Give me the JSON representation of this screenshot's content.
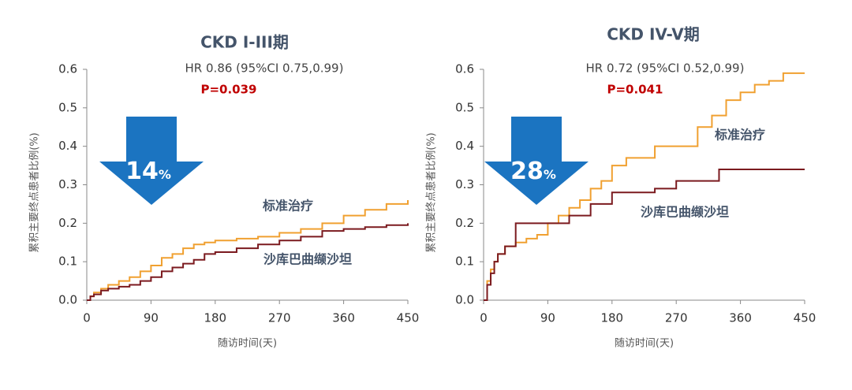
{
  "chart_data": [
    {
      "type": "line",
      "title": "CKD I-III期",
      "hr_text": "HR 0.86 (95%CI  0.75,0.99)",
      "p_text": "P=0.039",
      "arrow_value": 14,
      "arrow_unit": "%",
      "xlabel": "随访时间(天)",
      "ylabel": "累积主要终点患者比例(%)",
      "xlim": [
        0,
        450
      ],
      "xticks": [
        0,
        90,
        180,
        270,
        360,
        450
      ],
      "ylim": [
        0,
        0.6
      ],
      "yticks": [
        {
          "value": 0,
          "label": "0.0"
        },
        0.1,
        0.2,
        0.3,
        0.4,
        0.5,
        0.6
      ],
      "series": [
        {
          "name": "标准治疗",
          "color": "#f0a030",
          "x": [
            0,
            5,
            10,
            20,
            30,
            45,
            60,
            75,
            90,
            105,
            120,
            135,
            150,
            165,
            180,
            210,
            240,
            270,
            300,
            330,
            360,
            390,
            420,
            450
          ],
          "values": [
            0,
            0.01,
            0.02,
            0.03,
            0.04,
            0.05,
            0.06,
            0.075,
            0.09,
            0.11,
            0.12,
            0.135,
            0.145,
            0.15,
            0.155,
            0.16,
            0.165,
            0.175,
            0.185,
            0.2,
            0.22,
            0.235,
            0.25,
            0.26
          ]
        },
        {
          "name": "沙库巴曲缬沙坦",
          "color": "#7b1a1f",
          "x": [
            0,
            5,
            10,
            20,
            30,
            45,
            60,
            75,
            90,
            105,
            120,
            135,
            150,
            165,
            180,
            210,
            240,
            270,
            300,
            330,
            360,
            390,
            420,
            450
          ],
          "values": [
            0,
            0.01,
            0.015,
            0.025,
            0.03,
            0.035,
            0.04,
            0.05,
            0.06,
            0.075,
            0.085,
            0.095,
            0.105,
            0.12,
            0.125,
            0.135,
            0.145,
            0.155,
            0.165,
            0.18,
            0.185,
            0.19,
            0.195,
            0.2
          ]
        }
      ]
    },
    {
      "type": "line",
      "title": "CKD IV-V期",
      "hr_text": "HR 0.72 (95%CI  0.52,0.99)",
      "p_text": "P=0.041",
      "arrow_value": 28,
      "arrow_unit": "%",
      "xlabel": "随访时间(天)",
      "ylabel": "累积主要终点患者比例(%)",
      "xlim": [
        0,
        450
      ],
      "xticks": [
        0,
        90,
        180,
        270,
        360,
        450
      ],
      "ylim": [
        0,
        0.6
      ],
      "yticks": [
        {
          "value": 0,
          "label": "0.0"
        },
        0.1,
        0.2,
        0.3,
        0.4,
        0.5,
        0.6
      ],
      "series": [
        {
          "name": "标准治疗",
          "color": "#f0a030",
          "x": [
            0,
            5,
            10,
            15,
            20,
            30,
            45,
            60,
            75,
            90,
            105,
            120,
            135,
            150,
            165,
            180,
            200,
            240,
            270,
            300,
            320,
            340,
            360,
            380,
            400,
            420,
            450
          ],
          "values": [
            0,
            0.05,
            0.08,
            0.1,
            0.12,
            0.14,
            0.15,
            0.16,
            0.17,
            0.2,
            0.22,
            0.24,
            0.26,
            0.29,
            0.31,
            0.35,
            0.37,
            0.4,
            0.4,
            0.45,
            0.48,
            0.52,
            0.54,
            0.56,
            0.57,
            0.59,
            0.59
          ]
        },
        {
          "name": "沙库巴曲缬沙坦",
          "color": "#7b1a1f",
          "x": [
            0,
            5,
            10,
            15,
            20,
            30,
            45,
            60,
            90,
            120,
            150,
            180,
            210,
            240,
            270,
            300,
            330,
            360,
            420,
            450
          ],
          "values": [
            0,
            0.04,
            0.07,
            0.1,
            0.12,
            0.14,
            0.2,
            0.2,
            0.2,
            0.22,
            0.25,
            0.28,
            0.28,
            0.29,
            0.31,
            0.31,
            0.34,
            0.34,
            0.34,
            0.34
          ]
        }
      ]
    }
  ]
}
